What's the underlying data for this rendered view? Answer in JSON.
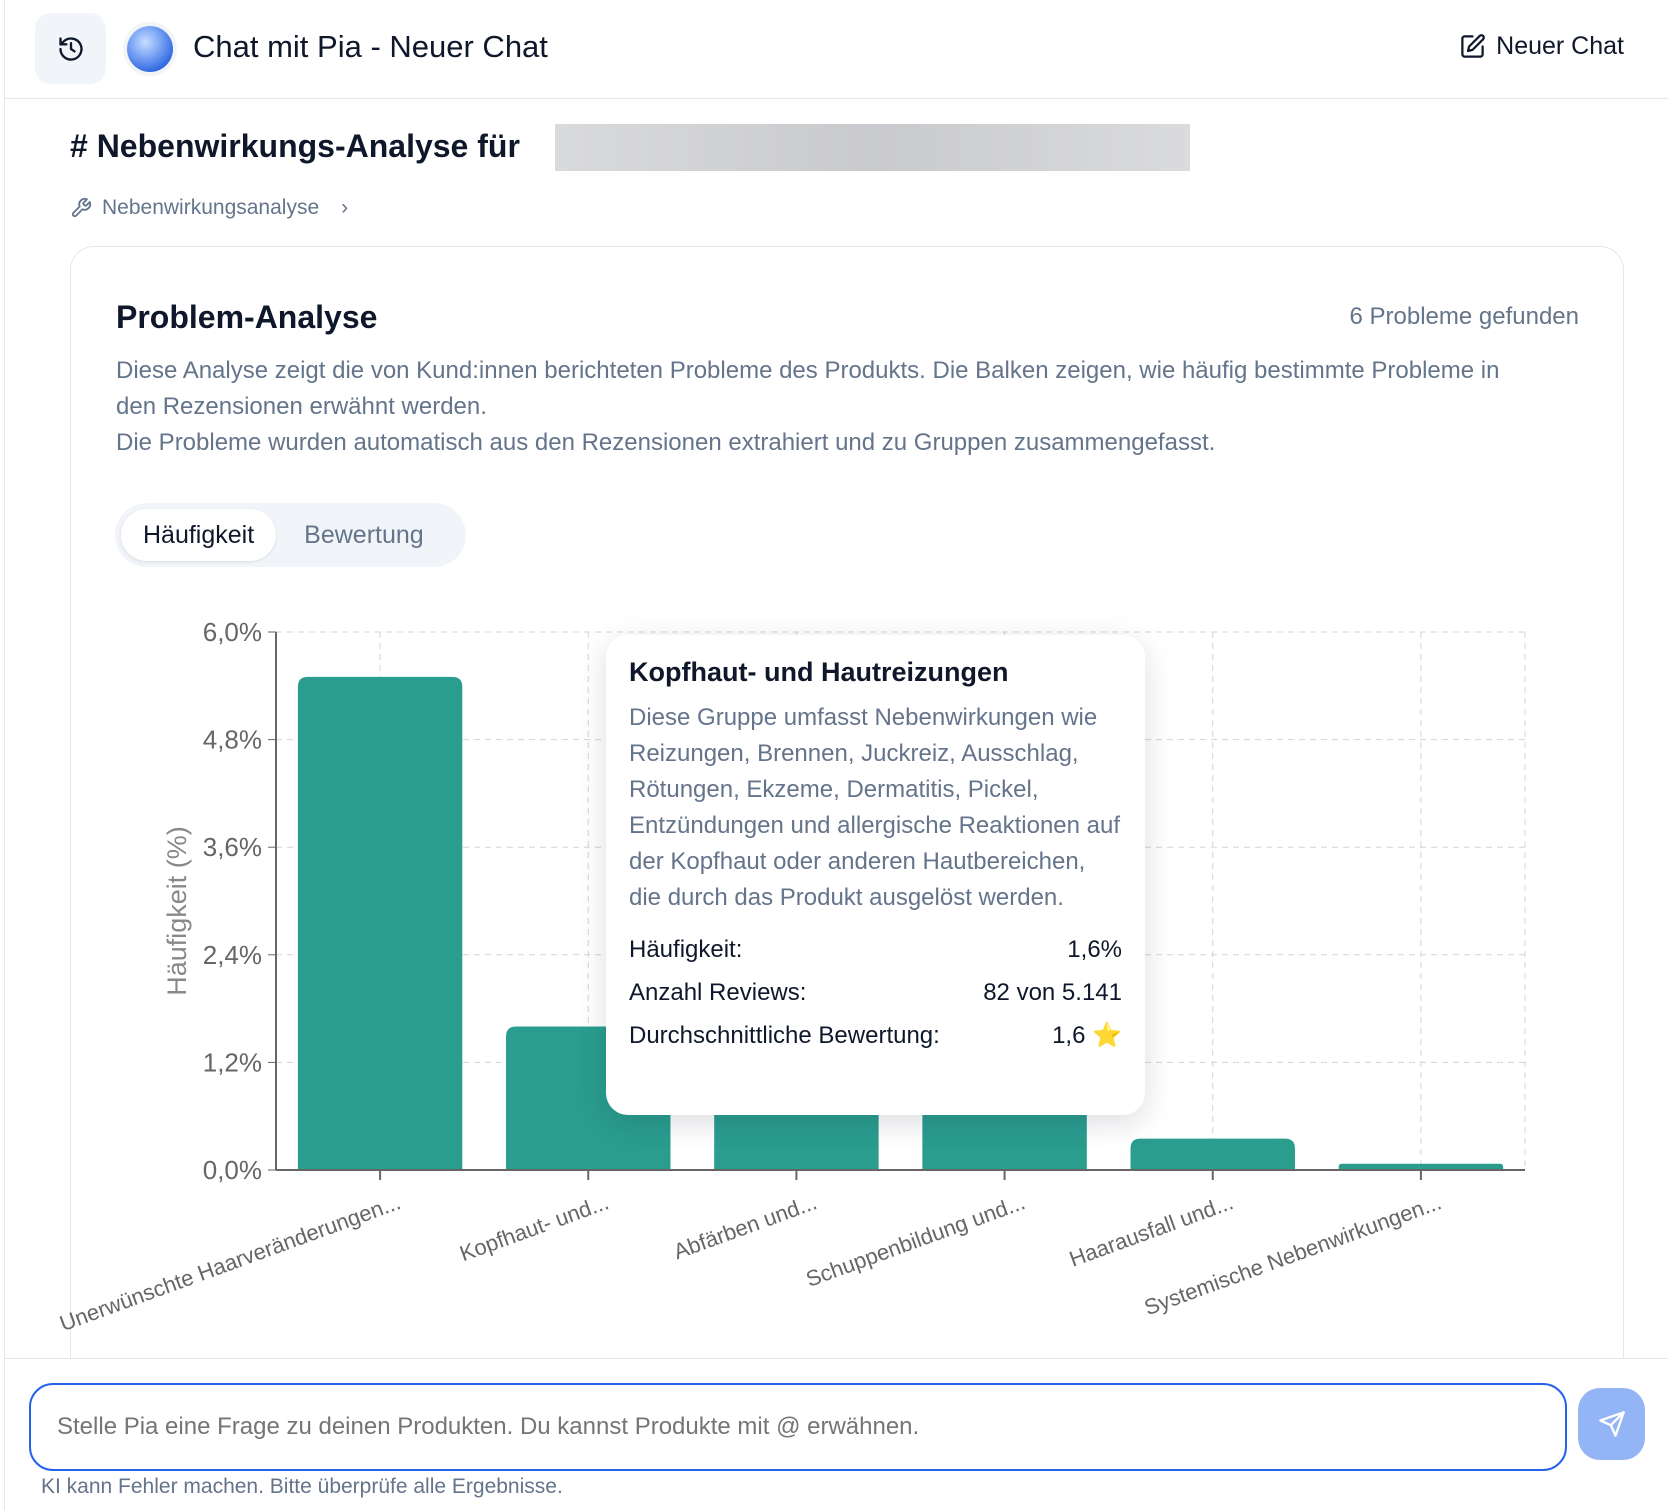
{
  "header": {
    "title": "Chat mit Pia - Neuer Chat",
    "new_chat_label": "Neuer Chat",
    "history_icon": "history-icon",
    "new_chat_icon": "edit-icon"
  },
  "page": {
    "heading": "# Nebenwirkungs-Analyse für",
    "breadcrumb": "Nebenwirkungsanalyse"
  },
  "card": {
    "title": "Problem-Analyse",
    "count": "6 Probleme gefunden",
    "description": [
      "Diese Analyse zeigt die von Kund:innen berichteten Probleme des Produkts. Die Balken zeigen, wie häufig bestimmte Probleme in den Rezensionen erwähnt werden.",
      "Die Probleme wurden automatisch aus den Rezensionen extrahiert und zu Gruppen zusammengefasst."
    ],
    "tabs": [
      {
        "label": "Häufigkeit",
        "active": true
      },
      {
        "label": "Bewertung",
        "active": false
      }
    ]
  },
  "chart_data": {
    "type": "bar",
    "ylabel": "Häufigkeit (%)",
    "ylim": [
      0,
      6
    ],
    "yticks": [
      "0,0%",
      "1,2%",
      "2,4%",
      "3,6%",
      "4,8%",
      "6,0%"
    ],
    "grid": true,
    "bar_color": "#2a9d8f",
    "categories": [
      "Unerwünschte Haarveränderungen...",
      "Kopfhaut- und...",
      "Abfärben und...",
      "Schuppenbildung und...",
      "Haarausfall und...",
      "Systemische Nebenwirkungen..."
    ],
    "values": [
      5.5,
      1.6,
      1.0,
      0.9,
      0.35,
      0.07
    ]
  },
  "tooltip": {
    "title": "Kopfhaut- und Hautreizungen",
    "description": "Diese Gruppe umfasst Nebenwirkungen wie Reizungen, Brennen, Juckreiz, Ausschlag, Rötungen, Ekzeme, Dermatitis, Pickel, Entzündungen und allergische Reaktionen auf der Kopfhaut oder anderen Hautbereichen, die durch das Produkt ausgelöst werden.",
    "rows": [
      {
        "label": "Häufigkeit:",
        "value": "1,6%"
      },
      {
        "label": "Anzahl Reviews:",
        "value": "82 von 5.141"
      },
      {
        "label": "Durchschnittliche Bewertung:",
        "value": "1,6 ⭐"
      }
    ]
  },
  "input": {
    "placeholder": "Stelle Pia eine Frage zu deinen Produkten. Du kannst Produkte mit @ erwähnen."
  },
  "footer": "KI kann Fehler machen. Bitte überprüfe alle Ergebnisse.",
  "accent": "#2563eb"
}
